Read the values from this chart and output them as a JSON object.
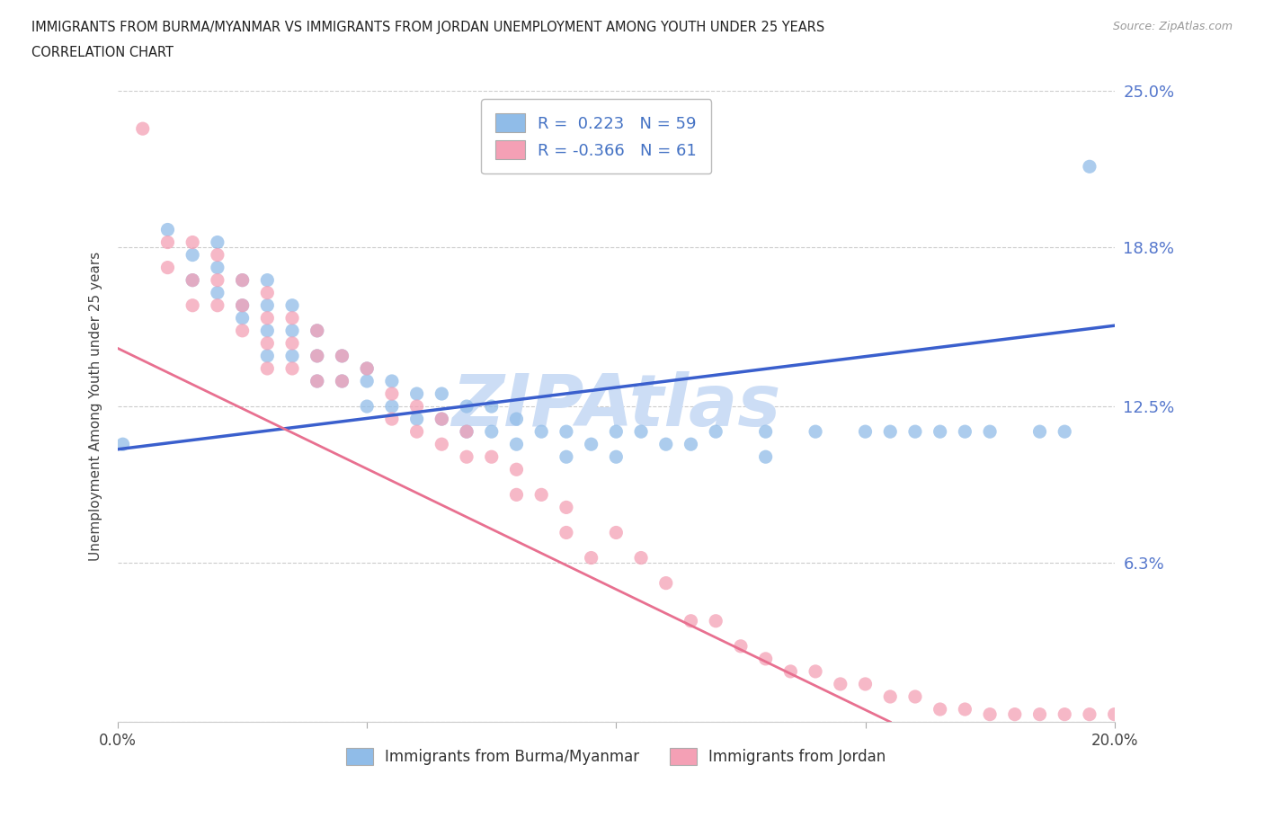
{
  "title_line1": "IMMIGRANTS FROM BURMA/MYANMAR VS IMMIGRANTS FROM JORDAN UNEMPLOYMENT AMONG YOUTH UNDER 25 YEARS",
  "title_line2": "CORRELATION CHART",
  "source_text": "Source: ZipAtlas.com",
  "ylabel": "Unemployment Among Youth under 25 years",
  "xlim": [
    0.0,
    0.2
  ],
  "ylim": [
    0.0,
    0.25
  ],
  "yticks": [
    0.0,
    0.063,
    0.125,
    0.188,
    0.25
  ],
  "ytick_labels": [
    "",
    "6.3%",
    "12.5%",
    "18.8%",
    "25.0%"
  ],
  "xticks": [
    0.0,
    0.05,
    0.1,
    0.15,
    0.2
  ],
  "xtick_labels": [
    "0.0%",
    "",
    "",
    "",
    "20.0%"
  ],
  "legend_R_burma": "0.223",
  "legend_N_burma": "59",
  "legend_R_jordan": "-0.366",
  "legend_N_jordan": "61",
  "color_burma": "#90bce8",
  "color_jordan": "#f4a0b5",
  "line_color_burma": "#3a5fcd",
  "line_color_jordan": "#e87090",
  "watermark_color": "#ccddf5",
  "grid_color": "#cccccc",
  "burma_x": [
    0.001,
    0.01,
    0.015,
    0.015,
    0.02,
    0.02,
    0.02,
    0.025,
    0.025,
    0.025,
    0.03,
    0.03,
    0.03,
    0.03,
    0.035,
    0.035,
    0.035,
    0.04,
    0.04,
    0.04,
    0.045,
    0.045,
    0.05,
    0.05,
    0.05,
    0.055,
    0.055,
    0.06,
    0.06,
    0.065,
    0.065,
    0.07,
    0.07,
    0.075,
    0.075,
    0.08,
    0.08,
    0.085,
    0.09,
    0.09,
    0.095,
    0.1,
    0.1,
    0.105,
    0.11,
    0.115,
    0.12,
    0.13,
    0.13,
    0.14,
    0.15,
    0.155,
    0.16,
    0.165,
    0.17,
    0.175,
    0.185,
    0.19,
    0.195
  ],
  "burma_y": [
    0.11,
    0.195,
    0.185,
    0.175,
    0.19,
    0.18,
    0.17,
    0.175,
    0.165,
    0.16,
    0.175,
    0.165,
    0.155,
    0.145,
    0.165,
    0.155,
    0.145,
    0.155,
    0.145,
    0.135,
    0.145,
    0.135,
    0.14,
    0.135,
    0.125,
    0.135,
    0.125,
    0.13,
    0.12,
    0.13,
    0.12,
    0.125,
    0.115,
    0.125,
    0.115,
    0.12,
    0.11,
    0.115,
    0.115,
    0.105,
    0.11,
    0.115,
    0.105,
    0.115,
    0.11,
    0.11,
    0.115,
    0.115,
    0.105,
    0.115,
    0.115,
    0.115,
    0.115,
    0.115,
    0.115,
    0.115,
    0.115,
    0.115,
    0.22
  ],
  "jordan_x": [
    0.005,
    0.01,
    0.01,
    0.015,
    0.015,
    0.015,
    0.02,
    0.02,
    0.02,
    0.025,
    0.025,
    0.025,
    0.03,
    0.03,
    0.03,
    0.03,
    0.035,
    0.035,
    0.035,
    0.04,
    0.04,
    0.04,
    0.045,
    0.045,
    0.05,
    0.055,
    0.055,
    0.06,
    0.06,
    0.065,
    0.065,
    0.07,
    0.07,
    0.075,
    0.08,
    0.08,
    0.085,
    0.09,
    0.09,
    0.095,
    0.1,
    0.105,
    0.11,
    0.115,
    0.12,
    0.125,
    0.13,
    0.135,
    0.14,
    0.145,
    0.15,
    0.155,
    0.16,
    0.165,
    0.17,
    0.175,
    0.18,
    0.185,
    0.19,
    0.195,
    0.2
  ],
  "jordan_y": [
    0.235,
    0.19,
    0.18,
    0.19,
    0.175,
    0.165,
    0.185,
    0.175,
    0.165,
    0.175,
    0.165,
    0.155,
    0.17,
    0.16,
    0.15,
    0.14,
    0.16,
    0.15,
    0.14,
    0.155,
    0.145,
    0.135,
    0.145,
    0.135,
    0.14,
    0.13,
    0.12,
    0.125,
    0.115,
    0.12,
    0.11,
    0.115,
    0.105,
    0.105,
    0.1,
    0.09,
    0.09,
    0.085,
    0.075,
    0.065,
    0.075,
    0.065,
    0.055,
    0.04,
    0.04,
    0.03,
    0.025,
    0.02,
    0.02,
    0.015,
    0.015,
    0.01,
    0.01,
    0.005,
    0.005,
    0.003,
    0.003,
    0.003,
    0.003,
    0.003,
    0.003
  ],
  "burma_trend_x": [
    0.0,
    0.2
  ],
  "burma_trend_y": [
    0.108,
    0.157
  ],
  "jordan_trend_x": [
    0.0,
    0.155
  ],
  "jordan_trend_y": [
    0.148,
    0.0
  ]
}
